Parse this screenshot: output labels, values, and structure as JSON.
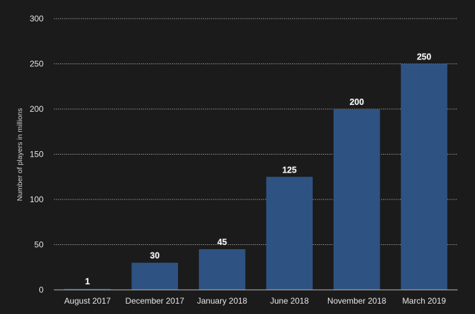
{
  "chart_data": {
    "type": "bar",
    "title": "",
    "xlabel": "",
    "ylabel": "Number of players in millions",
    "categories": [
      "August 2017",
      "December 2017",
      "January 2018",
      "June 2018",
      "November 2018",
      "March 2019"
    ],
    "values": [
      1,
      30,
      45,
      125,
      200,
      250
    ],
    "ylim": [
      0,
      300
    ],
    "yticks": [
      0,
      50,
      100,
      150,
      200,
      250,
      300
    ],
    "grid": true,
    "bar_color": "#2e5382",
    "background_color": "#1b1b1b",
    "grid_color": "#9a9a9a",
    "data_labels": true
  }
}
